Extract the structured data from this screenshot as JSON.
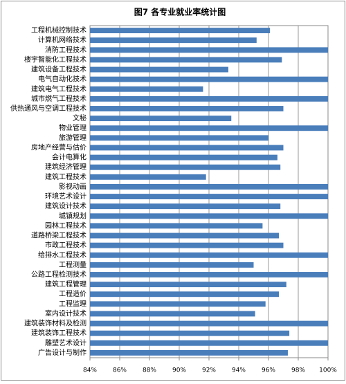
{
  "chart_data": {
    "type": "barh",
    "title": "图7 各专业就业率统计图",
    "categories": [
      "工程机械控制技术",
      "计算机网络技术",
      "消防工程技术",
      "楼宇智能化工程技术",
      "建筑设备工程技术",
      "电气自动化技术",
      "建筑电气工程技术",
      "城市燃气工程技术",
      "供热通风与空调工程技术",
      "文秘",
      "物业管理",
      "旅游管理",
      "房地产经营与估价",
      "会计电算化",
      "建筑经济管理",
      "建筑工程技术",
      "影视动画",
      "环境艺术设计",
      "建筑设计技术",
      "城镇规划",
      "园林工程技术",
      "道路桥梁工程技术",
      "市政工程技术",
      "给排水工程技术",
      "工程测量",
      "公路工程检测技术",
      "建筑工程管理",
      "工程造价",
      "工程监理",
      "室内设计技术",
      "建筑装饰材料及检测",
      "建筑装饰工程技术",
      "雕塑艺术设计",
      "广告设计与制作"
    ],
    "values": [
      96.1,
      95.2,
      100,
      96.9,
      93.3,
      100,
      91.6,
      100,
      97.0,
      93.5,
      100,
      96.0,
      97.0,
      96.6,
      96.8,
      91.8,
      100,
      100,
      96.8,
      100,
      95.6,
      96.7,
      97.0,
      100,
      95.0,
      100,
      97.2,
      96.7,
      95.8,
      95.1,
      100,
      97.4,
      100,
      97.3
    ],
    "color": "#4a7ebb",
    "xlim": [
      84,
      100
    ],
    "xticks": [
      {
        "value": 84,
        "label": "84%"
      },
      {
        "value": 86,
        "label": "86%"
      },
      {
        "value": 88,
        "label": "88%"
      },
      {
        "value": 90,
        "label": "90%"
      },
      {
        "value": 92,
        "label": "92%"
      },
      {
        "value": 94,
        "label": "94%"
      },
      {
        "value": 96,
        "label": "96%"
      },
      {
        "value": 98,
        "label": "98%"
      },
      {
        "value": 100,
        "label": "100%"
      }
    ],
    "grid": true
  }
}
